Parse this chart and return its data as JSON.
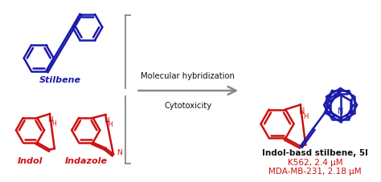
{
  "background_color": "#ffffff",
  "blue_color": "#1a1aaa",
  "red_color": "#cc1111",
  "black_color": "#111111",
  "gray_color": "#888888",
  "arrow_text1": "Molecular hybridization",
  "arrow_text2": "Cytotoxicity",
  "label_stilbene": "Stilbene",
  "label_indol": "Indol",
  "label_indazole": "Indazole",
  "label_product": "Indol-basd stilbene, 5l",
  "label_k562": "K562, 2.4 μM",
  "label_mda": "MDA-MB-231, 2.18 μM",
  "figsize": [
    4.74,
    2.27
  ],
  "dpi": 100
}
